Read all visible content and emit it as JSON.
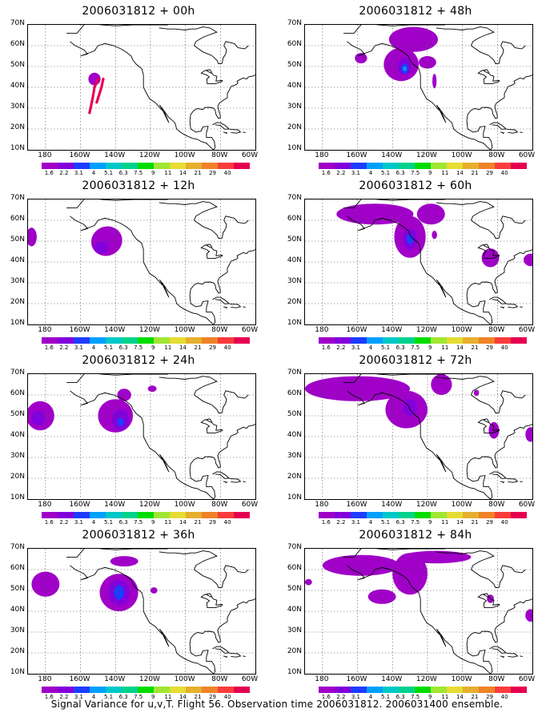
{
  "caption": "Signal Variance for u,v,T. Flight 56. Observation time 2006031812. 2006031400 ensemble.",
  "y_ticks": [
    "70N",
    "60N",
    "50N",
    "40N",
    "30N",
    "20N",
    "10N"
  ],
  "x_ticks": [
    "180",
    "160W",
    "140W",
    "120W",
    "100W",
    "80W",
    "60W"
  ],
  "colorbar": {
    "labels": [
      "1.6",
      "2.2",
      "3.1",
      "4",
      "5.1",
      "6.3",
      "7.5",
      "9",
      "11",
      "14",
      "21",
      "29",
      "40"
    ],
    "colors": [
      "#a000c8",
      "#8200dc",
      "#1e3cff",
      "#00a0ff",
      "#00c8c8",
      "#00d28c",
      "#00dc00",
      "#a0e632",
      "#e6dc32",
      "#e6af2d",
      "#f08228",
      "#fa3c3c",
      "#e60050"
    ]
  },
  "panels": [
    {
      "title": "2006031812 + 00h"
    },
    {
      "title": "2006031812 + 48h"
    },
    {
      "title": "2006031812 + 12h"
    },
    {
      "title": "2006031812 + 60h"
    },
    {
      "title": "2006031812 + 24h"
    },
    {
      "title": "2006031812 + 72h"
    },
    {
      "title": "2006031812 + 36h"
    },
    {
      "title": "2006031812 + 84h"
    }
  ]
}
